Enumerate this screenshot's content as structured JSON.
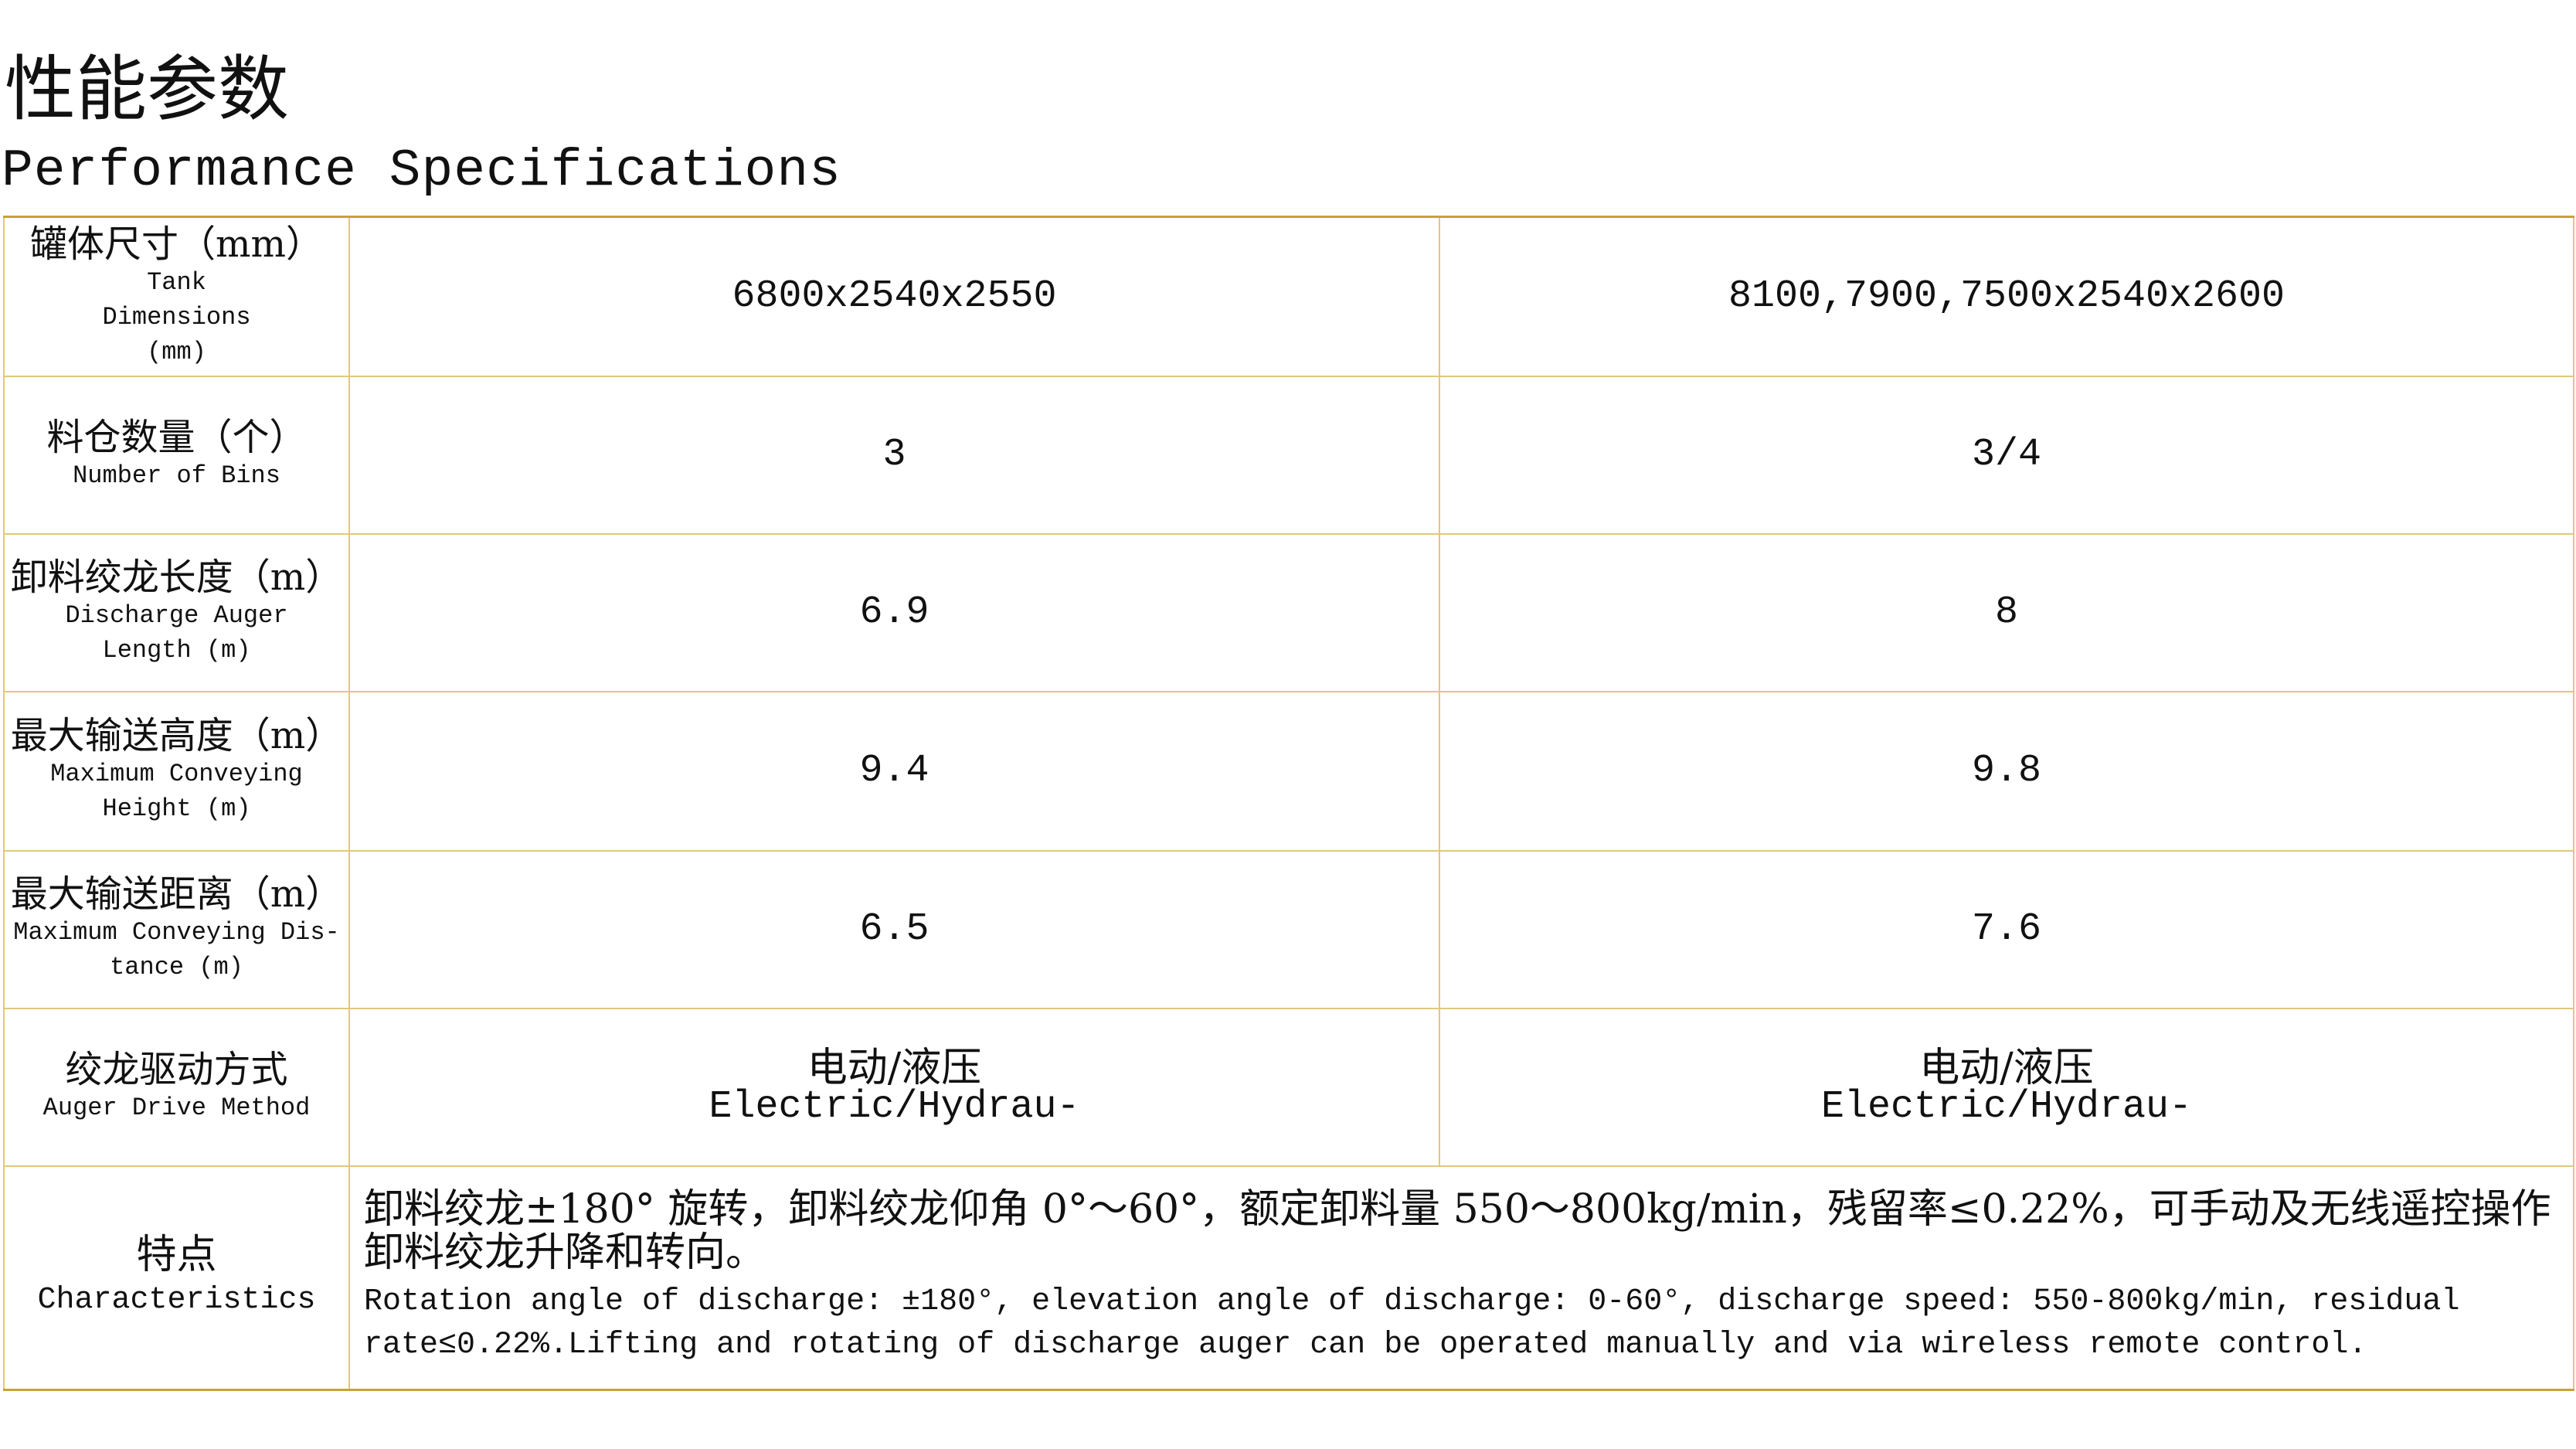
{
  "header": {
    "title_cn": "性能参数",
    "title_en": "Performance Specifications"
  },
  "border_color": "#e2c77c",
  "rows": [
    {
      "label_cn": "罐体尺寸（mm）",
      "label_en": "Tank Dimensions (mm)",
      "values": [
        "6800x2540x2550",
        "8100,7900,7500x2540x2600"
      ]
    },
    {
      "label_cn": "料仓数量（个）",
      "label_en": "Number of Bins",
      "values": [
        "3",
        "3/4"
      ]
    },
    {
      "label_cn": "卸料绞龙长度（m）",
      "label_en": "Discharge Auger Length (m)",
      "values": [
        "6.9",
        "8"
      ]
    },
    {
      "label_cn": "最大输送高度（m）",
      "label_en": "Maximum Conveying Height (m)",
      "values": [
        "9.4",
        "9.8"
      ]
    },
    {
      "label_cn": "最大输送距离（m）",
      "label_en": "Maximum Conveying Dis-tance (m)",
      "values": [
        "6.5",
        "7.6"
      ]
    },
    {
      "label_cn": "绞龙驱动方式",
      "label_en": "Auger Drive Method",
      "values_cn": [
        "电动/液压",
        "电动/液压"
      ],
      "values_en": [
        "Electric/Hydrau-",
        "Electric/Hydrau-"
      ]
    }
  ],
  "characteristics": {
    "label_cn": "特点",
    "label_en": "Characteristics",
    "text_cn": "卸料绞龙±180° 旋转，卸料绞龙仰角 0°～60°，额定卸料量 550～800kg/min，残留率≤0.22%，可手动及无线遥控操作卸料绞龙升降和转向。",
    "text_en": "Rotation angle of discharge: ±180°,  elevation angle of  discharge: 0-60°,  discharge speed: 550-800kg/min, residual rate≤0.22%.Lifting and rotating of discharge auger can be operated manually and via wireless remote control."
  }
}
